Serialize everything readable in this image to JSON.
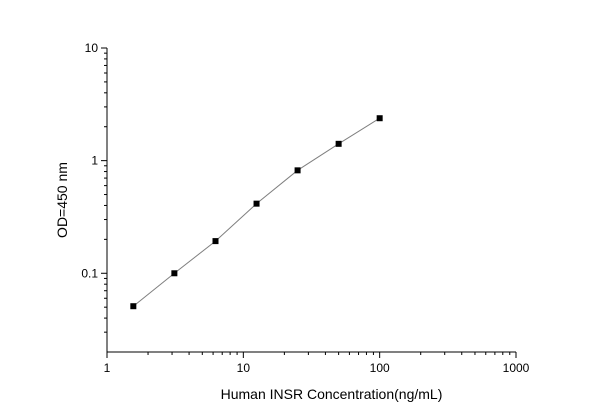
{
  "chart_data": {
    "type": "line",
    "xlabel": "Human INSR Concentration(ng/mL)",
    "ylabel": "OD=450 nm",
    "xscale": "log",
    "yscale": "log",
    "xlim": [
      1,
      1000
    ],
    "ylim": [
      0.02,
      10
    ],
    "grid": false,
    "x_ticks": [
      {
        "value": 1,
        "label": "1"
      },
      {
        "value": 10,
        "label": "10"
      },
      {
        "value": 100,
        "label": "100"
      },
      {
        "value": 1000,
        "label": "1000"
      }
    ],
    "y_ticks": [
      {
        "value": 0.1,
        "label": "0.1"
      },
      {
        "value": 1,
        "label": "1"
      },
      {
        "value": 10,
        "label": "10"
      }
    ],
    "series": [
      {
        "marker": "square",
        "color": "#000000",
        "line_color": "#7f7f7f",
        "x": [
          1.56,
          3.12,
          6.25,
          12.5,
          25,
          50,
          100
        ],
        "y": [
          0.051,
          0.1,
          0.193,
          0.415,
          0.82,
          1.41,
          2.38
        ]
      }
    ]
  }
}
